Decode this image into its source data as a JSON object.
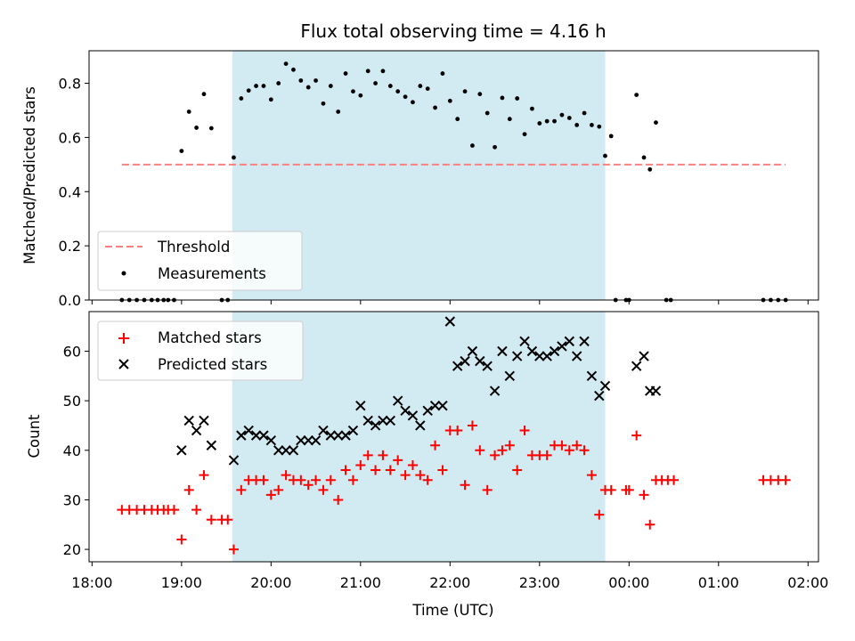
{
  "chart_data": [
    {
      "type": "scatter",
      "title": "Flux total observing time = 4.16 h",
      "xlabel": "",
      "ylabel": "Matched/Predicted stars",
      "ylim": [
        0,
        0.92
      ],
      "yticks": [
        "0.0",
        "0.2",
        "0.4",
        "0.6",
        "0.8"
      ],
      "shaded_span": {
        "start": "19:34",
        "end": "23:44"
      },
      "legend": {
        "placement": "lower-left",
        "entries": [
          "Threshold",
          "Measurements"
        ]
      },
      "series": [
        {
          "name": "Threshold",
          "kind": "dashed-line",
          "color": "#ff7f7f",
          "points": [
            {
              "x": "18:20",
              "y": 0.5
            },
            {
              "x": "01:45",
              "y": 0.5
            }
          ]
        },
        {
          "name": "Measurements",
          "kind": "dots",
          "color": "#000000",
          "points": [
            {
              "x": "18:20",
              "y": 0
            },
            {
              "x": "18:25",
              "y": 0
            },
            {
              "x": "18:30",
              "y": 0
            },
            {
              "x": "18:35",
              "y": 0
            },
            {
              "x": "18:40",
              "y": 0
            },
            {
              "x": "18:44",
              "y": 0
            },
            {
              "x": "18:48",
              "y": 0
            },
            {
              "x": "18:51",
              "y": 0
            },
            {
              "x": "18:55",
              "y": 0
            },
            {
              "x": "19:00",
              "y": 0.55
            },
            {
              "x": "19:05",
              "y": 0.695
            },
            {
              "x": "19:10",
              "y": 0.636
            },
            {
              "x": "19:15",
              "y": 0.76
            },
            {
              "x": "19:20",
              "y": 0.634
            },
            {
              "x": "19:27",
              "y": 0
            },
            {
              "x": "19:31",
              "y": 0
            },
            {
              "x": "19:35",
              "y": 0.526
            },
            {
              "x": "19:40",
              "y": 0.744
            },
            {
              "x": "19:45",
              "y": 0.773
            },
            {
              "x": "19:50",
              "y": 0.79
            },
            {
              "x": "19:55",
              "y": 0.79
            },
            {
              "x": "20:00",
              "y": 0.74
            },
            {
              "x": "20:05",
              "y": 0.8
            },
            {
              "x": "20:10",
              "y": 0.872
            },
            {
              "x": "20:15",
              "y": 0.85
            },
            {
              "x": "20:20",
              "y": 0.81
            },
            {
              "x": "20:25",
              "y": 0.785
            },
            {
              "x": "20:30",
              "y": 0.81
            },
            {
              "x": "20:35",
              "y": 0.725
            },
            {
              "x": "20:40",
              "y": 0.79
            },
            {
              "x": "20:45",
              "y": 0.695
            },
            {
              "x": "20:50",
              "y": 0.836
            },
            {
              "x": "20:55",
              "y": 0.77
            },
            {
              "x": "21:00",
              "y": 0.755
            },
            {
              "x": "21:05",
              "y": 0.845
            },
            {
              "x": "21:10",
              "y": 0.8
            },
            {
              "x": "21:15",
              "y": 0.845
            },
            {
              "x": "21:20",
              "y": 0.79
            },
            {
              "x": "21:25",
              "y": 0.77
            },
            {
              "x": "21:30",
              "y": 0.75
            },
            {
              "x": "21:35",
              "y": 0.73
            },
            {
              "x": "21:40",
              "y": 0.79
            },
            {
              "x": "21:45",
              "y": 0.78
            },
            {
              "x": "21:50",
              "y": 0.71
            },
            {
              "x": "21:55",
              "y": 0.836
            },
            {
              "x": "22:00",
              "y": 0.735
            },
            {
              "x": "22:05",
              "y": 0.668
            },
            {
              "x": "22:10",
              "y": 0.77
            },
            {
              "x": "22:15",
              "y": 0.57
            },
            {
              "x": "22:20",
              "y": 0.76
            },
            {
              "x": "22:25",
              "y": 0.69
            },
            {
              "x": "22:30",
              "y": 0.564
            },
            {
              "x": "22:35",
              "y": 0.746
            },
            {
              "x": "22:40",
              "y": 0.668
            },
            {
              "x": "22:45",
              "y": 0.744
            },
            {
              "x": "22:50",
              "y": 0.612
            },
            {
              "x": "22:55",
              "y": 0.706
            },
            {
              "x": "23:00",
              "y": 0.652
            },
            {
              "x": "23:05",
              "y": 0.66
            },
            {
              "x": "23:10",
              "y": 0.66
            },
            {
              "x": "23:15",
              "y": 0.683
            },
            {
              "x": "23:20",
              "y": 0.672
            },
            {
              "x": "23:25",
              "y": 0.646
            },
            {
              "x": "23:30",
              "y": 0.69
            },
            {
              "x": "23:35",
              "y": 0.646
            },
            {
              "x": "23:40",
              "y": 0.64
            },
            {
              "x": "23:44",
              "y": 0.532
            },
            {
              "x": "23:48",
              "y": 0.605
            },
            {
              "x": "23:51",
              "y": 0
            },
            {
              "x": "23:58",
              "y": 0
            },
            {
              "x": "00:00",
              "y": 0
            },
            {
              "x": "00:05",
              "y": 0.757
            },
            {
              "x": "00:10",
              "y": 0.526
            },
            {
              "x": "00:14",
              "y": 0.482
            },
            {
              "x": "00:18",
              "y": 0.655
            },
            {
              "x": "00:25",
              "y": 0
            },
            {
              "x": "00:28",
              "y": 0
            },
            {
              "x": "01:30",
              "y": 0
            },
            {
              "x": "01:35",
              "y": 0
            },
            {
              "x": "01:40",
              "y": 0
            },
            {
              "x": "01:45",
              "y": 0
            }
          ]
        }
      ]
    },
    {
      "type": "scatter",
      "title": "",
      "xlabel": "Time (UTC)",
      "ylabel": "Count",
      "ylim": [
        17.5,
        68
      ],
      "yticks": [
        "20",
        "30",
        "40",
        "50",
        "60"
      ],
      "xticks": [
        "18:00",
        "19:00",
        "20:00",
        "21:00",
        "22:00",
        "23:00",
        "00:00",
        "01:00",
        "02:00"
      ],
      "shaded_span": {
        "start": "19:34",
        "end": "23:44"
      },
      "legend": {
        "placement": "upper-left",
        "entries": [
          "Matched stars",
          "Predicted stars"
        ]
      },
      "series": [
        {
          "name": "Matched stars",
          "kind": "plus",
          "color": "#ff0000",
          "points": [
            {
              "x": "18:20",
              "y": 28
            },
            {
              "x": "18:25",
              "y": 28
            },
            {
              "x": "18:30",
              "y": 28
            },
            {
              "x": "18:35",
              "y": 28
            },
            {
              "x": "18:40",
              "y": 28
            },
            {
              "x": "18:44",
              "y": 28
            },
            {
              "x": "18:48",
              "y": 28
            },
            {
              "x": "18:51",
              "y": 28
            },
            {
              "x": "18:55",
              "y": 28
            },
            {
              "x": "19:00",
              "y": 22
            },
            {
              "x": "19:05",
              "y": 32
            },
            {
              "x": "19:10",
              "y": 28
            },
            {
              "x": "19:15",
              "y": 35
            },
            {
              "x": "19:20",
              "y": 26
            },
            {
              "x": "19:27",
              "y": 26
            },
            {
              "x": "19:31",
              "y": 26
            },
            {
              "x": "19:35",
              "y": 20
            },
            {
              "x": "19:40",
              "y": 32
            },
            {
              "x": "19:45",
              "y": 34
            },
            {
              "x": "19:50",
              "y": 34
            },
            {
              "x": "19:55",
              "y": 34
            },
            {
              "x": "20:00",
              "y": 31
            },
            {
              "x": "20:05",
              "y": 32
            },
            {
              "x": "20:10",
              "y": 35
            },
            {
              "x": "20:15",
              "y": 34
            },
            {
              "x": "20:20",
              "y": 34
            },
            {
              "x": "20:25",
              "y": 33
            },
            {
              "x": "20:30",
              "y": 34
            },
            {
              "x": "20:35",
              "y": 32
            },
            {
              "x": "20:40",
              "y": 34
            },
            {
              "x": "20:45",
              "y": 30
            },
            {
              "x": "20:50",
              "y": 36
            },
            {
              "x": "20:55",
              "y": 34
            },
            {
              "x": "21:00",
              "y": 37
            },
            {
              "x": "21:05",
              "y": 39
            },
            {
              "x": "21:10",
              "y": 36
            },
            {
              "x": "21:15",
              "y": 39
            },
            {
              "x": "21:20",
              "y": 36
            },
            {
              "x": "21:25",
              "y": 38
            },
            {
              "x": "21:30",
              "y": 35
            },
            {
              "x": "21:35",
              "y": 37
            },
            {
              "x": "21:40",
              "y": 35
            },
            {
              "x": "21:45",
              "y": 34
            },
            {
              "x": "21:50",
              "y": 41
            },
            {
              "x": "21:55",
              "y": 36
            },
            {
              "x": "22:00",
              "y": 44
            },
            {
              "x": "22:05",
              "y": 44
            },
            {
              "x": "22:10",
              "y": 33
            },
            {
              "x": "22:15",
              "y": 45
            },
            {
              "x": "22:20",
              "y": 40
            },
            {
              "x": "22:25",
              "y": 32
            },
            {
              "x": "22:30",
              "y": 39
            },
            {
              "x": "22:35",
              "y": 40
            },
            {
              "x": "22:40",
              "y": 41
            },
            {
              "x": "22:45",
              "y": 36
            },
            {
              "x": "22:50",
              "y": 44
            },
            {
              "x": "22:55",
              "y": 39
            },
            {
              "x": "23:00",
              "y": 39
            },
            {
              "x": "23:05",
              "y": 39
            },
            {
              "x": "23:10",
              "y": 41
            },
            {
              "x": "23:15",
              "y": 41
            },
            {
              "x": "23:20",
              "y": 40
            },
            {
              "x": "23:25",
              "y": 41
            },
            {
              "x": "23:30",
              "y": 40
            },
            {
              "x": "23:35",
              "y": 35
            },
            {
              "x": "23:40",
              "y": 27
            },
            {
              "x": "23:44",
              "y": 32
            },
            {
              "x": "23:48",
              "y": 32
            },
            {
              "x": "23:58",
              "y": 32
            },
            {
              "x": "00:00",
              "y": 32
            },
            {
              "x": "00:05",
              "y": 43
            },
            {
              "x": "00:10",
              "y": 31
            },
            {
              "x": "00:14",
              "y": 25
            },
            {
              "x": "00:18",
              "y": 34
            },
            {
              "x": "00:22",
              "y": 34
            },
            {
              "x": "00:26",
              "y": 34
            },
            {
              "x": "00:30",
              "y": 34
            },
            {
              "x": "01:30",
              "y": 34
            },
            {
              "x": "01:35",
              "y": 34
            },
            {
              "x": "01:40",
              "y": 34
            },
            {
              "x": "01:45",
              "y": 34
            }
          ]
        },
        {
          "name": "Predicted stars",
          "kind": "cross",
          "color": "#000000",
          "points": [
            {
              "x": "19:00",
              "y": 40
            },
            {
              "x": "19:05",
              "y": 46
            },
            {
              "x": "19:10",
              "y": 44
            },
            {
              "x": "19:15",
              "y": 46
            },
            {
              "x": "19:20",
              "y": 41
            },
            {
              "x": "19:35",
              "y": 38
            },
            {
              "x": "19:40",
              "y": 43
            },
            {
              "x": "19:45",
              "y": 44
            },
            {
              "x": "19:50",
              "y": 43
            },
            {
              "x": "19:55",
              "y": 43
            },
            {
              "x": "20:00",
              "y": 42
            },
            {
              "x": "20:05",
              "y": 40
            },
            {
              "x": "20:10",
              "y": 40
            },
            {
              "x": "20:15",
              "y": 40
            },
            {
              "x": "20:20",
              "y": 42
            },
            {
              "x": "20:25",
              "y": 42
            },
            {
              "x": "20:30",
              "y": 42
            },
            {
              "x": "20:35",
              "y": 44
            },
            {
              "x": "20:40",
              "y": 43
            },
            {
              "x": "20:45",
              "y": 43
            },
            {
              "x": "20:50",
              "y": 43
            },
            {
              "x": "20:55",
              "y": 44
            },
            {
              "x": "21:00",
              "y": 49
            },
            {
              "x": "21:05",
              "y": 46
            },
            {
              "x": "21:10",
              "y": 45
            },
            {
              "x": "21:15",
              "y": 46
            },
            {
              "x": "21:20",
              "y": 46
            },
            {
              "x": "21:25",
              "y": 50
            },
            {
              "x": "21:30",
              "y": 48
            },
            {
              "x": "21:35",
              "y": 47
            },
            {
              "x": "21:40",
              "y": 45
            },
            {
              "x": "21:45",
              "y": 48
            },
            {
              "x": "21:50",
              "y": 49
            },
            {
              "x": "21:55",
              "y": 49
            },
            {
              "x": "22:00",
              "y": 66
            },
            {
              "x": "22:05",
              "y": 57
            },
            {
              "x": "22:10",
              "y": 58
            },
            {
              "x": "22:15",
              "y": 60
            },
            {
              "x": "22:20",
              "y": 58
            },
            {
              "x": "22:25",
              "y": 57
            },
            {
              "x": "22:30",
              "y": 52
            },
            {
              "x": "22:35",
              "y": 60
            },
            {
              "x": "22:40",
              "y": 55
            },
            {
              "x": "22:45",
              "y": 59
            },
            {
              "x": "22:50",
              "y": 62
            },
            {
              "x": "22:55",
              "y": 60
            },
            {
              "x": "23:00",
              "y": 59
            },
            {
              "x": "23:05",
              "y": 59
            },
            {
              "x": "23:10",
              "y": 60
            },
            {
              "x": "23:15",
              "y": 61
            },
            {
              "x": "23:20",
              "y": 62
            },
            {
              "x": "23:25",
              "y": 59
            },
            {
              "x": "23:30",
              "y": 62
            },
            {
              "x": "23:35",
              "y": 55
            },
            {
              "x": "23:40",
              "y": 51
            },
            {
              "x": "23:44",
              "y": 53
            },
            {
              "x": "00:05",
              "y": 57
            },
            {
              "x": "00:10",
              "y": 59
            },
            {
              "x": "00:14",
              "y": 52
            },
            {
              "x": "00:18",
              "y": 52
            }
          ]
        }
      ]
    }
  ],
  "colors": {
    "span": "#add8e6",
    "threshold": "#ff7f7f",
    "matched": "#ff0000",
    "predicted": "#000000"
  }
}
